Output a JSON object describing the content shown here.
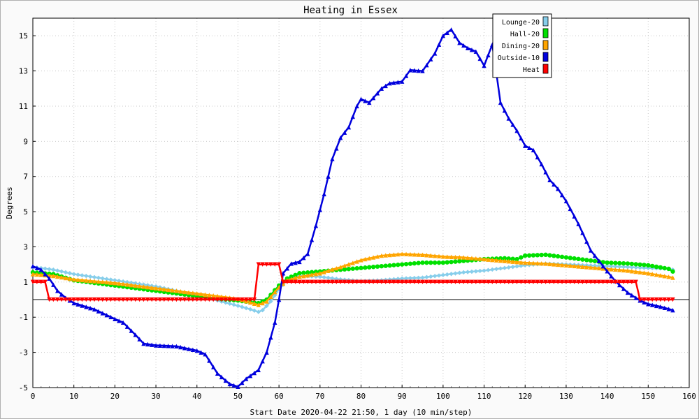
{
  "chart_data": {
    "type": "line",
    "title": "Heating in Essex",
    "xlabel": "Start Date 2020-04-22 21:50, 1 day (10 min/step)",
    "ylabel": "Degrees",
    "xlim": [
      0,
      160
    ],
    "ylim": [
      -5,
      16
    ],
    "x_ticks": [
      0,
      10,
      20,
      30,
      40,
      50,
      60,
      70,
      80,
      90,
      100,
      110,
      120,
      130,
      140,
      150,
      160
    ],
    "y_ticks": [
      -5,
      -3,
      -1,
      1,
      3,
      5,
      7,
      9,
      11,
      13,
      15
    ],
    "grid": true,
    "legend_position": "top-right",
    "series": [
      {
        "name": "Lounge-20",
        "color": "#87ceeb",
        "marker": "diamond",
        "points": [
          [
            0,
            1.85
          ],
          [
            5,
            1.7
          ],
          [
            10,
            1.45
          ],
          [
            20,
            1.1
          ],
          [
            30,
            0.75
          ],
          [
            40,
            0.25
          ],
          [
            45,
            -0.05
          ],
          [
            50,
            -0.35
          ],
          [
            53,
            -0.55
          ],
          [
            55,
            -0.7
          ],
          [
            56,
            -0.6
          ],
          [
            58,
            -0.1
          ],
          [
            60,
            0.6
          ],
          [
            62,
            1.1
          ],
          [
            65,
            1.35
          ],
          [
            70,
            1.3
          ],
          [
            75,
            1.15
          ],
          [
            80,
            1.05
          ],
          [
            85,
            1.1
          ],
          [
            90,
            1.2
          ],
          [
            95,
            1.25
          ],
          [
            100,
            1.4
          ],
          [
            105,
            1.55
          ],
          [
            110,
            1.65
          ],
          [
            115,
            1.8
          ],
          [
            120,
            1.95
          ],
          [
            125,
            2.05
          ],
          [
            130,
            2.0
          ],
          [
            135,
            1.95
          ],
          [
            140,
            1.9
          ],
          [
            145,
            1.85
          ],
          [
            150,
            1.8
          ],
          [
            155,
            1.75
          ],
          [
            156,
            1.7
          ]
        ]
      },
      {
        "name": "Hall-20",
        "color": "#00e000",
        "marker": "circle",
        "points": [
          [
            0,
            1.55
          ],
          [
            5,
            1.45
          ],
          [
            10,
            1.1
          ],
          [
            20,
            0.8
          ],
          [
            30,
            0.5
          ],
          [
            40,
            0.2
          ],
          [
            45,
            0.05
          ],
          [
            50,
            -0.05
          ],
          [
            55,
            -0.2
          ],
          [
            57,
            0.0
          ],
          [
            60,
            0.8
          ],
          [
            62,
            1.2
          ],
          [
            65,
            1.5
          ],
          [
            70,
            1.6
          ],
          [
            75,
            1.7
          ],
          [
            80,
            1.8
          ],
          [
            85,
            1.9
          ],
          [
            90,
            2.0
          ],
          [
            95,
            2.1
          ],
          [
            100,
            2.1
          ],
          [
            105,
            2.2
          ],
          [
            110,
            2.3
          ],
          [
            115,
            2.35
          ],
          [
            118,
            2.3
          ],
          [
            120,
            2.5
          ],
          [
            125,
            2.55
          ],
          [
            130,
            2.4
          ],
          [
            135,
            2.25
          ],
          [
            140,
            2.1
          ],
          [
            145,
            2.05
          ],
          [
            150,
            1.95
          ],
          [
            155,
            1.75
          ],
          [
            156,
            1.6
          ]
        ]
      },
      {
        "name": "Dining-20",
        "color": "#ffa500",
        "marker": "triangle",
        "points": [
          [
            0,
            1.45
          ],
          [
            5,
            1.35
          ],
          [
            10,
            1.15
          ],
          [
            20,
            0.95
          ],
          [
            30,
            0.65
          ],
          [
            40,
            0.35
          ],
          [
            45,
            0.2
          ],
          [
            50,
            0.05
          ],
          [
            55,
            -0.3
          ],
          [
            57,
            -0.1
          ],
          [
            60,
            0.7
          ],
          [
            62,
            1.1
          ],
          [
            65,
            1.3
          ],
          [
            70,
            1.5
          ],
          [
            75,
            1.85
          ],
          [
            80,
            2.25
          ],
          [
            85,
            2.5
          ],
          [
            90,
            2.6
          ],
          [
            95,
            2.55
          ],
          [
            100,
            2.45
          ],
          [
            105,
            2.4
          ],
          [
            110,
            2.3
          ],
          [
            115,
            2.2
          ],
          [
            120,
            2.1
          ],
          [
            125,
            2.05
          ],
          [
            130,
            1.95
          ],
          [
            135,
            1.85
          ],
          [
            140,
            1.75
          ],
          [
            145,
            1.65
          ],
          [
            150,
            1.5
          ],
          [
            155,
            1.3
          ],
          [
            156,
            1.25
          ]
        ]
      },
      {
        "name": "Outside-10",
        "color": "#0000dd",
        "marker": "triangle",
        "points": [
          [
            0,
            1.9
          ],
          [
            2,
            1.7
          ],
          [
            4,
            1.2
          ],
          [
            6,
            0.5
          ],
          [
            8,
            0.1
          ],
          [
            10,
            -0.2
          ],
          [
            15,
            -0.55
          ],
          [
            20,
            -1.1
          ],
          [
            22,
            -1.3
          ],
          [
            25,
            -2.0
          ],
          [
            27,
            -2.5
          ],
          [
            30,
            -2.6
          ],
          [
            35,
            -2.65
          ],
          [
            40,
            -2.9
          ],
          [
            42,
            -3.1
          ],
          [
            45,
            -4.2
          ],
          [
            48,
            -4.8
          ],
          [
            50,
            -4.95
          ],
          [
            52,
            -4.5
          ],
          [
            55,
            -4.0
          ],
          [
            57,
            -3.0
          ],
          [
            59,
            -1.3
          ],
          [
            60,
            0.0
          ],
          [
            61,
            1.5
          ],
          [
            63,
            2.05
          ],
          [
            65,
            2.15
          ],
          [
            67,
            2.6
          ],
          [
            69,
            4.2
          ],
          [
            71,
            6.0
          ],
          [
            73,
            8.0
          ],
          [
            75,
            9.2
          ],
          [
            77,
            9.8
          ],
          [
            79,
            11.0
          ],
          [
            80,
            11.4
          ],
          [
            82,
            11.2
          ],
          [
            85,
            12.0
          ],
          [
            87,
            12.3
          ],
          [
            90,
            12.4
          ],
          [
            92,
            13.05
          ],
          [
            95,
            13.0
          ],
          [
            98,
            14.0
          ],
          [
            100,
            15.0
          ],
          [
            102,
            15.35
          ],
          [
            104,
            14.6
          ],
          [
            106,
            14.3
          ],
          [
            108,
            14.1
          ],
          [
            110,
            13.3
          ],
          [
            112,
            14.5
          ],
          [
            114,
            11.2
          ],
          [
            116,
            10.3
          ],
          [
            118,
            9.6
          ],
          [
            120,
            8.75
          ],
          [
            122,
            8.5
          ],
          [
            124,
            7.7
          ],
          [
            126,
            6.8
          ],
          [
            128,
            6.3
          ],
          [
            130,
            5.6
          ],
          [
            133,
            4.3
          ],
          [
            136,
            2.8
          ],
          [
            139,
            1.9
          ],
          [
            142,
            1.05
          ],
          [
            145,
            0.4
          ],
          [
            148,
            -0.05
          ],
          [
            150,
            -0.25
          ],
          [
            153,
            -0.4
          ],
          [
            156,
            -0.6
          ]
        ]
      },
      {
        "name": "Heat",
        "color": "#ff0000",
        "marker": "triangle-down",
        "points": [
          [
            0,
            1.0
          ],
          [
            3,
            1.0
          ],
          [
            4,
            0.0
          ],
          [
            54,
            0.0
          ],
          [
            55,
            2.0
          ],
          [
            60,
            2.0
          ],
          [
            61,
            1.0
          ],
          [
            147,
            1.0
          ],
          [
            148,
            0.0
          ],
          [
            156,
            0.0
          ]
        ]
      }
    ]
  }
}
